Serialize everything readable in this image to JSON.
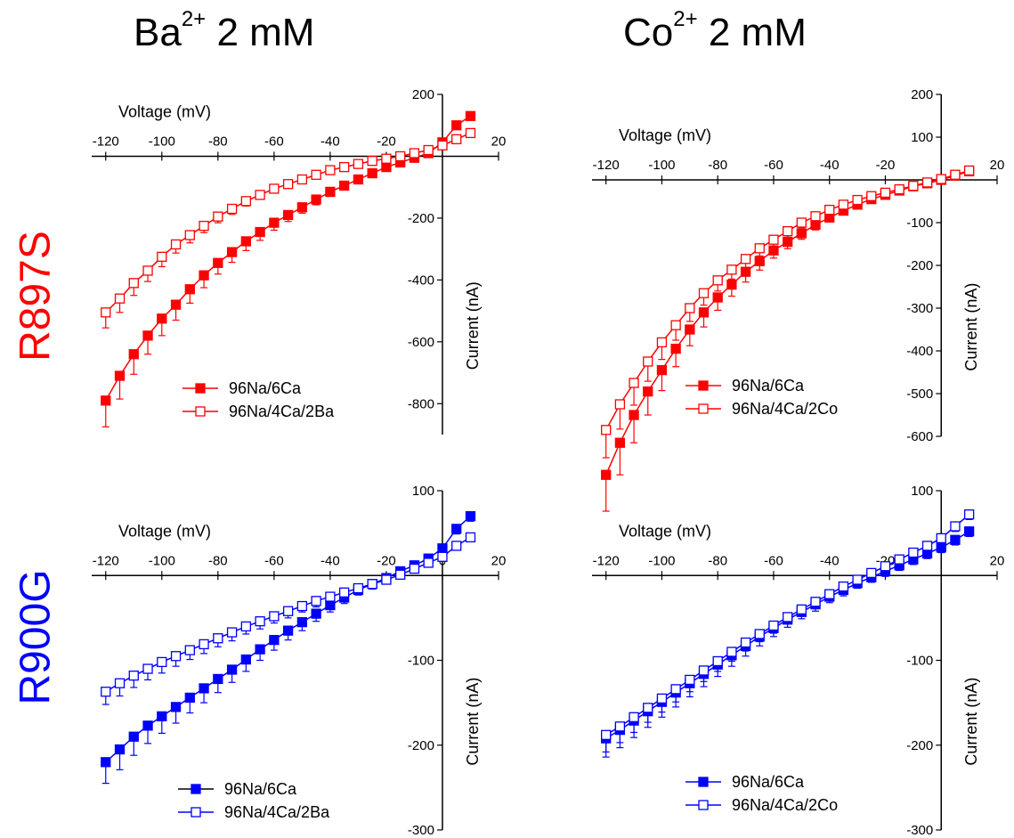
{
  "figure": {
    "columns": [
      {
        "ion": "Ba",
        "charge": "2+",
        "concentration": "2 mM"
      },
      {
        "ion": "Co",
        "charge": "2+",
        "concentration": "2 mM"
      }
    ],
    "rows": [
      {
        "label": "R897S",
        "color": "#ff0000"
      },
      {
        "label": "R900G",
        "color": "#0000ff"
      }
    ]
  },
  "chart_data": [
    {
      "type": "line",
      "panel": "R897S / Ba2+",
      "xlabel": "Voltage (mV)",
      "ylabel": "Current (nA)",
      "xlim": [
        -125,
        20
      ],
      "ylim": [
        -900,
        200
      ],
      "xticks": [
        -120,
        -100,
        -80,
        -60,
        -40,
        -20,
        20
      ],
      "yticks": [
        -800,
        -600,
        -400,
        -200,
        200
      ],
      "color": "#ff0000",
      "x": [
        -120,
        -115,
        -110,
        -105,
        -100,
        -95,
        -90,
        -85,
        -80,
        -75,
        -70,
        -65,
        -60,
        -55,
        -50,
        -45,
        -40,
        -35,
        -30,
        -25,
        -20,
        -15,
        -10,
        -5,
        0,
        5,
        10
      ],
      "series": [
        {
          "name": "96Na/6Ca",
          "marker": "filled",
          "values": [
            -790,
            -710,
            -640,
            -580,
            -525,
            -480,
            -430,
            -385,
            -345,
            -310,
            -275,
            -245,
            -215,
            -190,
            -165,
            -140,
            -115,
            -95,
            -75,
            -55,
            -35,
            -20,
            -5,
            10,
            45,
            100,
            130
          ],
          "err": [
            85,
            75,
            65,
            60,
            55,
            50,
            45,
            40,
            36,
            33,
            30,
            27,
            24,
            21,
            19,
            17,
            15,
            13,
            11,
            9,
            8,
            8,
            8,
            8,
            10,
            12,
            14
          ]
        },
        {
          "name": "96Na/4Ca/2Ba",
          "marker": "open",
          "values": [
            -505,
            -460,
            -410,
            -370,
            -325,
            -285,
            -255,
            -225,
            -195,
            -170,
            -145,
            -125,
            -105,
            -90,
            -75,
            -60,
            -45,
            -35,
            -25,
            -15,
            -8,
            0,
            10,
            20,
            35,
            55,
            75
          ],
          "err": [
            50,
            45,
            40,
            35,
            32,
            28,
            25,
            22,
            20,
            18,
            16,
            14,
            12,
            11,
            10,
            9,
            8,
            7,
            6,
            6,
            6,
            6,
            6,
            6,
            7,
            8,
            9
          ]
        }
      ]
    },
    {
      "type": "line",
      "panel": "R897S / Co2+",
      "xlabel": "Voltage (mV)",
      "ylabel": "Current (nA)",
      "xlim": [
        -125,
        20
      ],
      "ylim": [
        -600,
        200
      ],
      "xticks": [
        -120,
        -100,
        -80,
        -60,
        -40,
        -20,
        20
      ],
      "yticks": [
        -600,
        -500,
        -400,
        -300,
        -200,
        -100,
        100,
        200
      ],
      "color": "#ff0000",
      "x": [
        -120,
        -115,
        -110,
        -105,
        -100,
        -95,
        -90,
        -85,
        -80,
        -75,
        -70,
        -65,
        -60,
        -55,
        -50,
        -45,
        -40,
        -35,
        -30,
        -25,
        -20,
        -15,
        -10,
        -5,
        0,
        5,
        10
      ],
      "series": [
        {
          "name": "96Na/6Ca",
          "marker": "filled",
          "values": [
            -690,
            -615,
            -550,
            -495,
            -445,
            -395,
            -350,
            -310,
            -275,
            -245,
            -215,
            -190,
            -165,
            -145,
            -125,
            -105,
            -88,
            -72,
            -58,
            -45,
            -35,
            -25,
            -15,
            -8,
            0,
            10,
            20
          ],
          "err": [
            85,
            75,
            65,
            55,
            48,
            42,
            38,
            34,
            30,
            27,
            24,
            21,
            18,
            16,
            14,
            12,
            10,
            9,
            8,
            7,
            6,
            6,
            6,
            6,
            6,
            7,
            8
          ]
        },
        {
          "name": "96Na/4Ca/2Co",
          "marker": "open",
          "values": [
            -585,
            -525,
            -475,
            -425,
            -380,
            -340,
            -300,
            -265,
            -235,
            -210,
            -185,
            -160,
            -140,
            -120,
            -100,
            -85,
            -70,
            -58,
            -47,
            -38,
            -30,
            -22,
            -14,
            -6,
            2,
            12,
            22
          ],
          "err": [
            65,
            58,
            52,
            46,
            40,
            35,
            31,
            28,
            25,
            22,
            20,
            18,
            16,
            14,
            12,
            11,
            10,
            9,
            8,
            7,
            6,
            6,
            6,
            6,
            6,
            7,
            8
          ]
        }
      ]
    },
    {
      "type": "line",
      "panel": "R900G / Ba2+",
      "xlabel": "Voltage (mV)",
      "ylabel": "Current (nA)",
      "xlim": [
        -125,
        20
      ],
      "ylim": [
        -300,
        100
      ],
      "xticks": [
        -120,
        -100,
        -80,
        -60,
        -40,
        -20,
        0,
        20
      ],
      "yticks": [
        -300,
        -200,
        -100,
        100
      ],
      "color": "#0000ff",
      "x": [
        -120,
        -115,
        -110,
        -105,
        -100,
        -95,
        -90,
        -85,
        -80,
        -75,
        -70,
        -65,
        -60,
        -55,
        -50,
        -45,
        -40,
        -35,
        -30,
        -25,
        -20,
        -15,
        -10,
        -5,
        0,
        5,
        10
      ],
      "series": [
        {
          "name": "96Na/6Ca",
          "marker": "filled",
          "values": [
            -220,
            -205,
            -190,
            -177,
            -166,
            -155,
            -144,
            -133,
            -122,
            -111,
            -99,
            -87,
            -76,
            -65,
            -55,
            -45,
            -35,
            -26,
            -17,
            -10,
            -3,
            5,
            12,
            20,
            32,
            55,
            70
          ],
          "err": [
            25,
            24,
            22,
            21,
            20,
            19,
            18,
            17,
            16,
            15,
            14,
            13,
            12,
            11,
            10,
            9,
            8,
            7,
            6,
            6,
            5,
            5,
            5,
            5,
            6,
            6,
            6
          ]
        },
        {
          "name": "96Na/4Ca/2Ba",
          "marker": "open",
          "values": [
            -137,
            -127,
            -118,
            -110,
            -102,
            -95,
            -88,
            -81,
            -74,
            -67,
            -60,
            -54,
            -48,
            -42,
            -36,
            -30,
            -25,
            -20,
            -15,
            -10,
            -5,
            1,
            8,
            15,
            22,
            35,
            45
          ],
          "err": [
            15,
            15,
            14,
            13,
            13,
            12,
            11,
            11,
            10,
            10,
            9,
            9,
            8,
            8,
            7,
            7,
            6,
            6,
            5,
            5,
            5,
            5,
            5,
            5,
            5,
            5,
            5
          ]
        }
      ]
    },
    {
      "type": "line",
      "panel": "R900G / Co2+",
      "xlabel": "Voltage (mV)",
      "ylabel": "Current (nA)",
      "xlim": [
        -125,
        20
      ],
      "ylim": [
        -300,
        100
      ],
      "xticks": [
        -120,
        -100,
        -80,
        -60,
        -40,
        -20,
        20
      ],
      "yticks": [
        -300,
        -200,
        -100,
        100
      ],
      "color": "#0000ff",
      "x": [
        -120,
        -115,
        -110,
        -105,
        -100,
        -95,
        -90,
        -85,
        -80,
        -75,
        -70,
        -65,
        -60,
        -55,
        -50,
        -45,
        -40,
        -35,
        -30,
        -25,
        -20,
        -15,
        -10,
        -5,
        0,
        5,
        10
      ],
      "series": [
        {
          "name": "96Na/6Ca",
          "marker": "filled",
          "values": [
            -192,
            -182,
            -171,
            -160,
            -149,
            -138,
            -127,
            -116,
            -105,
            -94,
            -83,
            -72,
            -62,
            -52,
            -43,
            -34,
            -25,
            -17,
            -9,
            -2,
            5,
            12,
            19,
            26,
            33,
            42,
            52
          ],
          "err": [
            22,
            21,
            20,
            19,
            18,
            17,
            16,
            15,
            14,
            13,
            12,
            11,
            10,
            9,
            8,
            8,
            7,
            7,
            6,
            6,
            6,
            6,
            6,
            6,
            6,
            6,
            6
          ]
        },
        {
          "name": "96Na/4Ca/2Co",
          "marker": "open",
          "values": [
            -188,
            -178,
            -167,
            -156,
            -145,
            -134,
            -123,
            -112,
            -101,
            -90,
            -79,
            -69,
            -59,
            -49,
            -40,
            -31,
            -22,
            -13,
            -5,
            3,
            11,
            19,
            27,
            35,
            44,
            58,
            72
          ],
          "err": [
            20,
            19,
            18,
            17,
            16,
            15,
            14,
            13,
            12,
            11,
            10,
            9,
            9,
            8,
            8,
            7,
            7,
            6,
            6,
            6,
            6,
            6,
            6,
            6,
            6,
            6,
            6
          ]
        }
      ]
    }
  ]
}
